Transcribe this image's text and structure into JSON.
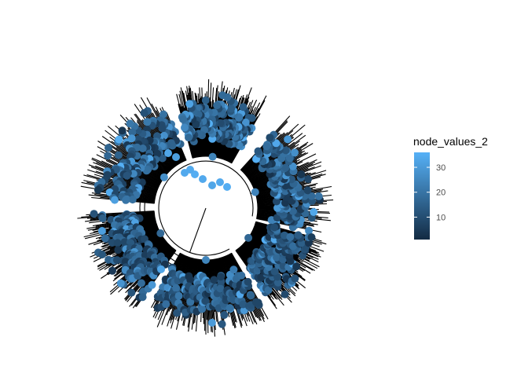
{
  "chart_data": {
    "type": "tree",
    "layout": "fan",
    "node_count": 700,
    "color_variable": "node_values_2",
    "color_range": [
      1,
      36
    ],
    "color_low": "#132B43",
    "color_high": "#56B1F7",
    "legend": {
      "title": "node_values_2",
      "ticks": [
        "10",
        "20",
        "30"
      ],
      "tick_values": [
        10,
        20,
        30
      ],
      "placement": "right"
    },
    "background": "blank",
    "grid": false
  }
}
